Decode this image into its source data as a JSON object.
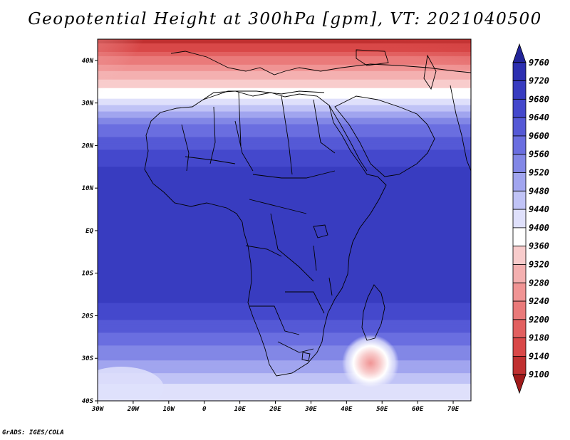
{
  "title": "Geopotential Height at 300hPa [gpm], VT: 2021040500",
  "credit": "GrADS: IGES/COLA",
  "map": {
    "type": "filled-contour-map",
    "variable": "Geopotential Height",
    "level": "300hPa",
    "units": "gpm",
    "valid_time": "2021040500",
    "lon_range": [
      -30,
      75
    ],
    "lat_range": [
      -40,
      45
    ],
    "lon_ticks": [
      {
        "value": -30,
        "label": "30W"
      },
      {
        "value": -20,
        "label": "20W"
      },
      {
        "value": -10,
        "label": "10W"
      },
      {
        "value": 0,
        "label": "0"
      },
      {
        "value": 10,
        "label": "10E"
      },
      {
        "value": 20,
        "label": "20E"
      },
      {
        "value": 30,
        "label": "30E"
      },
      {
        "value": 40,
        "label": "40E"
      },
      {
        "value": 50,
        "label": "50E"
      },
      {
        "value": 60,
        "label": "60E"
      },
      {
        "value": 70,
        "label": "70E"
      }
    ],
    "lat_ticks": [
      {
        "value": 40,
        "label": "40N"
      },
      {
        "value": 30,
        "label": "30N"
      },
      {
        "value": 20,
        "label": "20N"
      },
      {
        "value": 10,
        "label": "10N"
      },
      {
        "value": 0,
        "label": "EQ"
      },
      {
        "value": -10,
        "label": "10S"
      },
      {
        "value": -20,
        "label": "20S"
      },
      {
        "value": -30,
        "label": "30S"
      },
      {
        "value": -40,
        "label": "40S"
      }
    ],
    "height_profile_by_lat": [
      {
        "lat": 45,
        "value": 9120
      },
      {
        "lat": 40,
        "value": 9220
      },
      {
        "lat": 35,
        "value": 9330
      },
      {
        "lat": 30,
        "value": 9420
      },
      {
        "lat": 25,
        "value": 9560
      },
      {
        "lat": 20,
        "value": 9630
      },
      {
        "lat": 15,
        "value": 9680
      },
      {
        "lat": 10,
        "value": 9700
      },
      {
        "lat": 0,
        "value": 9700
      },
      {
        "lat": -10,
        "value": 9700
      },
      {
        "lat": -17,
        "value": 9680
      },
      {
        "lat": -22,
        "value": 9630
      },
      {
        "lat": -27,
        "value": 9560
      },
      {
        "lat": -32,
        "value": 9500
      },
      {
        "lat": -36,
        "value": 9440
      },
      {
        "lat": -40,
        "value": 9400
      }
    ],
    "features": [
      {
        "name": "low centre",
        "lon": 47,
        "lat": -31,
        "value": 9330
      }
    ]
  },
  "colorbar": {
    "levels": [
      9100,
      9140,
      9180,
      9200,
      9240,
      9280,
      9320,
      9360,
      9400,
      9440,
      9480,
      9520,
      9560,
      9600,
      9640,
      9680,
      9720,
      9760
    ],
    "colors": [
      "#a01a1a",
      "#c03030",
      "#d94848",
      "#e26060",
      "#ea7a7a",
      "#f09494",
      "#f4b0b0",
      "#f8cccc",
      "#ffffff",
      "#dfe0fb",
      "#c0c3f6",
      "#a1a5ef",
      "#8287e6",
      "#6a6ee0",
      "#5559d6",
      "#4448cc",
      "#383cc0",
      "#2c2fb0",
      "#222499"
    ]
  }
}
